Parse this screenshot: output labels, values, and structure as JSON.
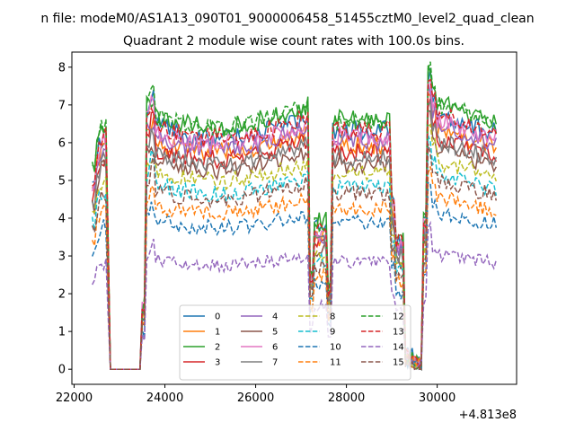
{
  "chart_data": {
    "type": "line",
    "suptitle": "n file: modeM0/AS1A13_090T01_9000006458_51455cztM0_level2_quad_clean",
    "title": "Quadrant 2 module wise count rates with 100.0s bins.",
    "xlabel": "",
    "ylabel": "",
    "x_offset_label": "+4.813e8",
    "xlim": [
      21950,
      31750
    ],
    "ylim": [
      -0.4,
      8.4
    ],
    "x_ticks": [
      22000,
      24000,
      26000,
      28000,
      30000
    ],
    "y_ticks": [
      0,
      1,
      2,
      3,
      4,
      5,
      6,
      7,
      8
    ],
    "legend_position": "lower-center",
    "legend_columns": 4,
    "segments": [
      {
        "start": 22400,
        "end": 28000,
        "anchors": [
          [
            22400,
            1.0
          ],
          [
            22500,
            0.96
          ],
          [
            22600,
            1.12
          ],
          [
            22700,
            1.24
          ],
          [
            22780,
            0.92
          ],
          [
            22800,
            0
          ]
        ]
      },
      {
        "start": 23500,
        "end": 27200
      },
      {
        "start": 27200,
        "end": 27700
      },
      {
        "start": 27700,
        "end": 29000
      },
      {
        "start": 29000,
        "end": 29800
      },
      {
        "start": 29800,
        "end": 31300
      }
    ],
    "series": [
      {
        "name": "0",
        "color": "#1f77b4",
        "dash": "solid",
        "level": 6.45
      },
      {
        "name": "1",
        "color": "#ff7f0e",
        "dash": "solid",
        "level": 6.05
      },
      {
        "name": "2",
        "color": "#2ca02c",
        "dash": "solid",
        "level": 6.75
      },
      {
        "name": "3",
        "color": "#d62728",
        "dash": "solid",
        "level": 5.85
      },
      {
        "name": "4",
        "color": "#9467bd",
        "dash": "solid",
        "level": 6.15
      },
      {
        "name": "5",
        "color": "#8c564b",
        "dash": "solid",
        "level": 5.55
      },
      {
        "name": "6",
        "color": "#e377c2",
        "dash": "solid",
        "level": 6.3
      },
      {
        "name": "7",
        "color": "#7f7f7f",
        "dash": "solid",
        "level": 5.75
      },
      {
        "name": "8",
        "color": "#bcbd22",
        "dash": "dashed",
        "level": 5.25
      },
      {
        "name": "9",
        "color": "#17becf",
        "dash": "dashed",
        "level": 4.9
      },
      {
        "name": "10",
        "color": "#1f77b4",
        "dash": "dashed",
        "level": 3.95
      },
      {
        "name": "11",
        "color": "#ff7f0e",
        "dash": "dashed",
        "level": 4.35
      },
      {
        "name": "12",
        "color": "#2ca02c",
        "dash": "dashed",
        "level": 6.7
      },
      {
        "name": "13",
        "color": "#d62728",
        "dash": "dashed",
        "level": 6.45
      },
      {
        "name": "14",
        "color": "#9467bd",
        "dash": "dashed",
        "level": 2.9
      },
      {
        "name": "15",
        "color": "#8c564b",
        "dash": "dashed",
        "level": 4.75
      }
    ]
  }
}
